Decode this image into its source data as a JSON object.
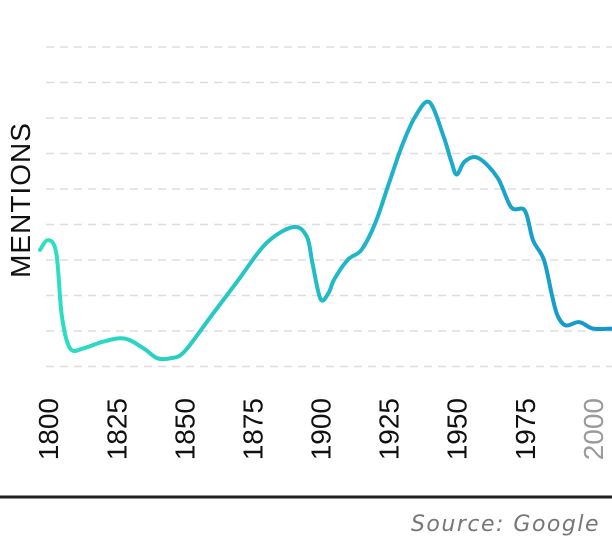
{
  "chart_data": {
    "type": "line",
    "ylabel": "MENTIONS",
    "xlabel": "",
    "title": "",
    "x_ticks": [
      "1800",
      "1825",
      "1850",
      "1875",
      "1900",
      "1925",
      "1950",
      "1975",
      "2000"
    ],
    "xlim": [
      1797,
      2007
    ],
    "ylim": [
      0,
      10
    ],
    "grid": true,
    "series": [
      {
        "x": [
          1797,
          1800,
          1803,
          1805,
          1808,
          1813,
          1820,
          1828,
          1835,
          1840,
          1845,
          1850,
          1860,
          1870,
          1880,
          1890,
          1895,
          1897,
          1900,
          1903,
          1905,
          1910,
          1915,
          1920,
          1925,
          1930,
          1935,
          1940,
          1945,
          1948,
          1950,
          1953,
          1958,
          1965,
          1970,
          1975,
          1978,
          1982,
          1985,
          1987,
          1990,
          1995,
          2000,
          2007
        ],
        "values": [
          3.6,
          3.9,
          3.5,
          1.6,
          0.6,
          0.6,
          0.8,
          0.9,
          0.6,
          0.3,
          0.3,
          0.5,
          1.6,
          2.7,
          3.8,
          4.3,
          4.0,
          3.2,
          2.1,
          2.3,
          2.7,
          3.3,
          3.6,
          4.4,
          5.6,
          6.8,
          7.7,
          8.1,
          7.1,
          6.3,
          5.9,
          6.3,
          6.4,
          5.8,
          4.9,
          4.8,
          3.9,
          3.3,
          2.2,
          1.6,
          1.3,
          1.4,
          1.2,
          1.2
        ]
      }
    ],
    "colors": {
      "line_start": "#2ee0c0",
      "line_end": "#1496cc",
      "grid": "#dddddd",
      "baseline": "#222222"
    }
  },
  "footer": {
    "source": "Source: Google"
  }
}
